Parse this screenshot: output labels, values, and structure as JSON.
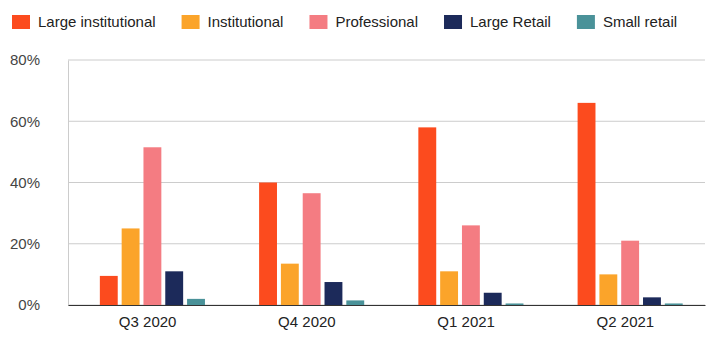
{
  "chart_data": {
    "type": "bar",
    "categories": [
      "Q3 2020",
      "Q4 2020",
      "Q1 2021",
      "Q2 2021"
    ],
    "series": [
      {
        "name": "Large institutional",
        "color": "#fc4b1e",
        "values": [
          9.5,
          40,
          58,
          66
        ]
      },
      {
        "name": "Institutional",
        "color": "#fba42a",
        "values": [
          25,
          13.5,
          11,
          10
        ]
      },
      {
        "name": "Professional",
        "color": "#f47c82",
        "values": [
          51.5,
          36.5,
          26,
          21
        ]
      },
      {
        "name": "Large Retail",
        "color": "#1c2a5a",
        "values": [
          11,
          7.5,
          4,
          2.5
        ]
      },
      {
        "name": "Small retail",
        "color": "#4a9299",
        "values": [
          2,
          1.5,
          0.5,
          0.5
        ]
      }
    ],
    "ylim": [
      0,
      80
    ],
    "yticks": [
      {
        "value": 0,
        "label": "0%"
      },
      {
        "value": 20,
        "label": "20%"
      },
      {
        "value": 40,
        "label": "40%"
      },
      {
        "value": 60,
        "label": "60%"
      },
      {
        "value": 80,
        "label": "80%"
      }
    ],
    "grid": true,
    "legend": "top"
  }
}
